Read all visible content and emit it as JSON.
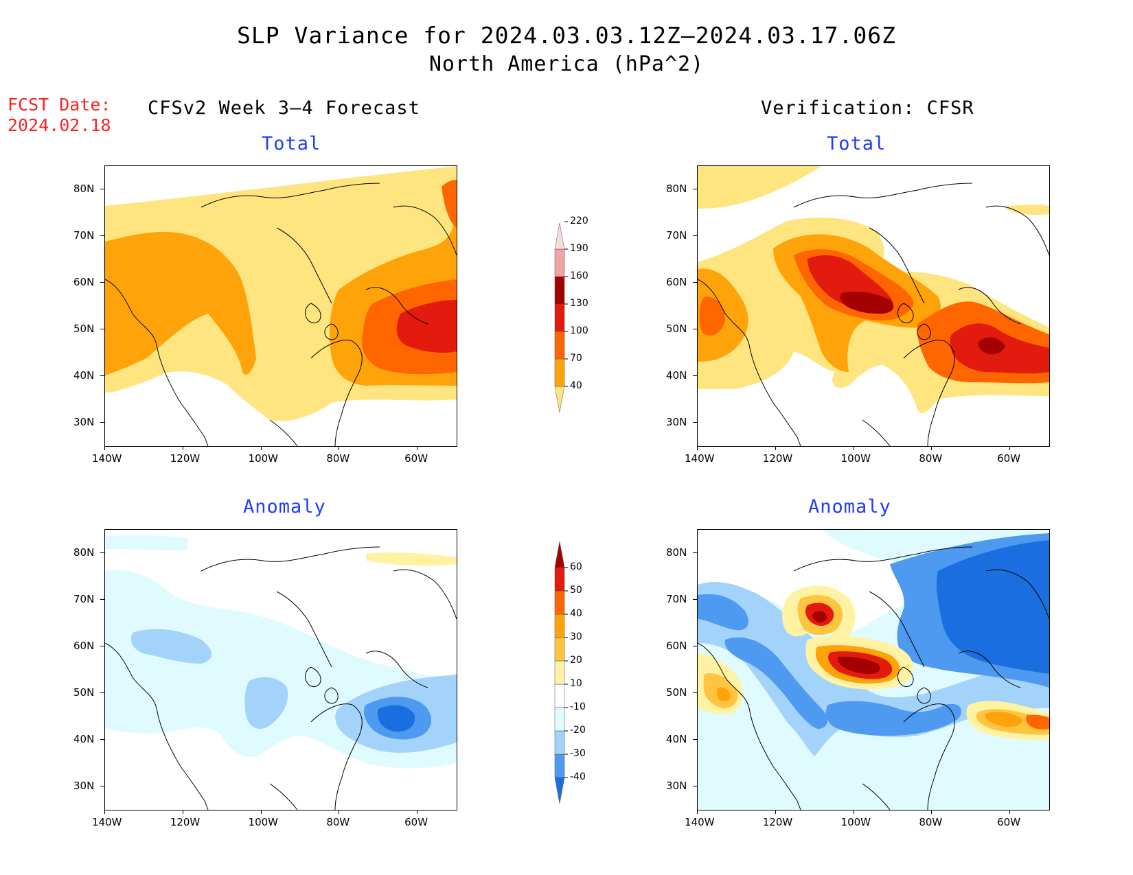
{
  "title": "SLP Variance for 2024.03.03.12Z—2024.03.17.06Z",
  "subtitle": "North America (hPa^2)",
  "fcst_label": "FCST Date:",
  "fcst_date": "2024.02.18",
  "columns": {
    "left": "CFSv2 Week 3–4 Forecast",
    "right": "Verification: CFSR"
  },
  "panel_titles": {
    "forecast_total": "Total",
    "forecast_anomaly": "Anomaly",
    "verif_total": "Total",
    "verif_anomaly": "Anomaly"
  },
  "axes": {
    "lat_ticks": [
      "80N",
      "70N",
      "60N",
      "50N",
      "40N",
      "30N"
    ],
    "lon_ticks": [
      "140W",
      "120W",
      "100W",
      "80W",
      "60W"
    ],
    "lat_range": [
      25,
      85
    ],
    "lon_range": [
      -140,
      -50
    ]
  },
  "total_colorbar": {
    "levels": [
      "40",
      "70",
      "100",
      "130",
      "160",
      "190",
      "220"
    ],
    "colors": [
      "#ffe57f",
      "#ffa30a",
      "#ff6600",
      "#e31a0e",
      "#a30000",
      "#f1a3a8",
      "#fddadc"
    ]
  },
  "anomaly_colorbar": {
    "levels": [
      "-40",
      "-30",
      "-20",
      "-10",
      "10",
      "20",
      "30",
      "40",
      "50",
      "60"
    ],
    "colors": [
      "#1b6ee0",
      "#4d9af0",
      "#a3d3fa",
      "#e0fbff",
      "#ffffff",
      "#fff3a3",
      "#ffc540",
      "#ffa30a",
      "#ff6600",
      "#e31a0e",
      "#a30000"
    ]
  },
  "map_colors": {
    "land_outline": "#000000",
    "total_low": "#ffe57f",
    "total_mid": "#ffa30a",
    "total_high": "#ff6600",
    "total_vhigh": "#e31a0e",
    "total_max": "#a30000",
    "anom_neg1": "#e0fbff",
    "anom_neg2": "#a3d3fa",
    "anom_neg3": "#4d9af0",
    "anom_neg4": "#1b6ee0",
    "anom_pos1": "#fff3a3",
    "anom_pos2": "#ffc540",
    "anom_pos3": "#ffa30a",
    "anom_pos4": "#ff6600",
    "anom_pos5": "#e31a0e",
    "anom_pos6": "#a30000"
  }
}
